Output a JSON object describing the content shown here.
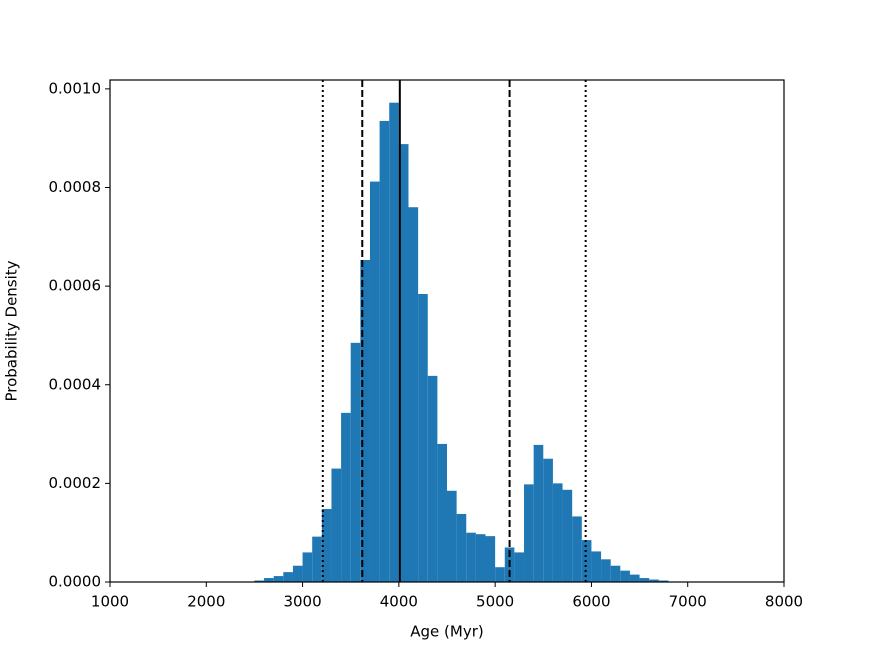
{
  "chart_data": {
    "type": "histogram",
    "x_label": "Age (Myr)",
    "y_label": "Probability Density",
    "bins": [
      2500,
      2600,
      2700,
      2800,
      2900,
      3000,
      3100,
      3200,
      3300,
      3400,
      3500,
      3600,
      3700,
      3800,
      3900,
      4000,
      4100,
      4200,
      4300,
      4400,
      4500,
      4600,
      4700,
      4800,
      4900,
      5000,
      5100,
      5200,
      5300,
      5400,
      5500,
      5600,
      5700,
      5800,
      5900,
      6000,
      6100,
      6200,
      6300,
      6400,
      6500,
      6600,
      6700,
      6800
    ],
    "values": [
      3e-06,
      8e-06,
      1.2e-05,
      2e-05,
      3.3e-05,
      6e-05,
      9.2e-05,
      0.000148,
      0.00023,
      0.000343,
      0.000485,
      0.000653,
      0.000812,
      0.000935,
      0.000972,
      0.000888,
      0.00076,
      0.000584,
      0.000418,
      0.00028,
      0.000185,
      0.000138,
      0.0001,
      9.7e-05,
      9.3e-05,
      3e-05,
      7e-05,
      6e-05,
      0.000198,
      0.000278,
      0.00025,
      0.0002,
      0.000187,
      0.000133,
      8.5e-05,
      6.2e-05,
      4.6e-05,
      3.3e-05,
      2.3e-05,
      1.5e-05,
      8e-06,
      5e-06,
      3e-06
    ],
    "color": "#1f77b4",
    "xlim": [
      1000,
      8000
    ],
    "ylim": [
      0,
      0.001018
    ],
    "xticks": [
      1000,
      2000,
      3000,
      4000,
      5000,
      6000,
      7000,
      8000
    ],
    "yticks": [
      {
        "value": 0,
        "label": "0.0000"
      },
      {
        "value": 0.0002,
        "label": "0.0002"
      },
      {
        "value": 0.0004,
        "label": "0.0004"
      },
      {
        "value": 0.0006,
        "label": "0.0006"
      },
      {
        "value": 0.0008,
        "label": "0.0008"
      },
      {
        "value": 0.001,
        "label": "0.0010"
      }
    ],
    "vlines": [
      {
        "x": 3210,
        "style": "dotted",
        "color": "#000000"
      },
      {
        "x": 3620,
        "style": "dashed",
        "color": "#000000"
      },
      {
        "x": 4010,
        "style": "solid",
        "color": "#000000"
      },
      {
        "x": 5150,
        "style": "dashed",
        "color": "#000000"
      },
      {
        "x": 5940,
        "style": "dotted",
        "color": "#000000"
      }
    ]
  }
}
